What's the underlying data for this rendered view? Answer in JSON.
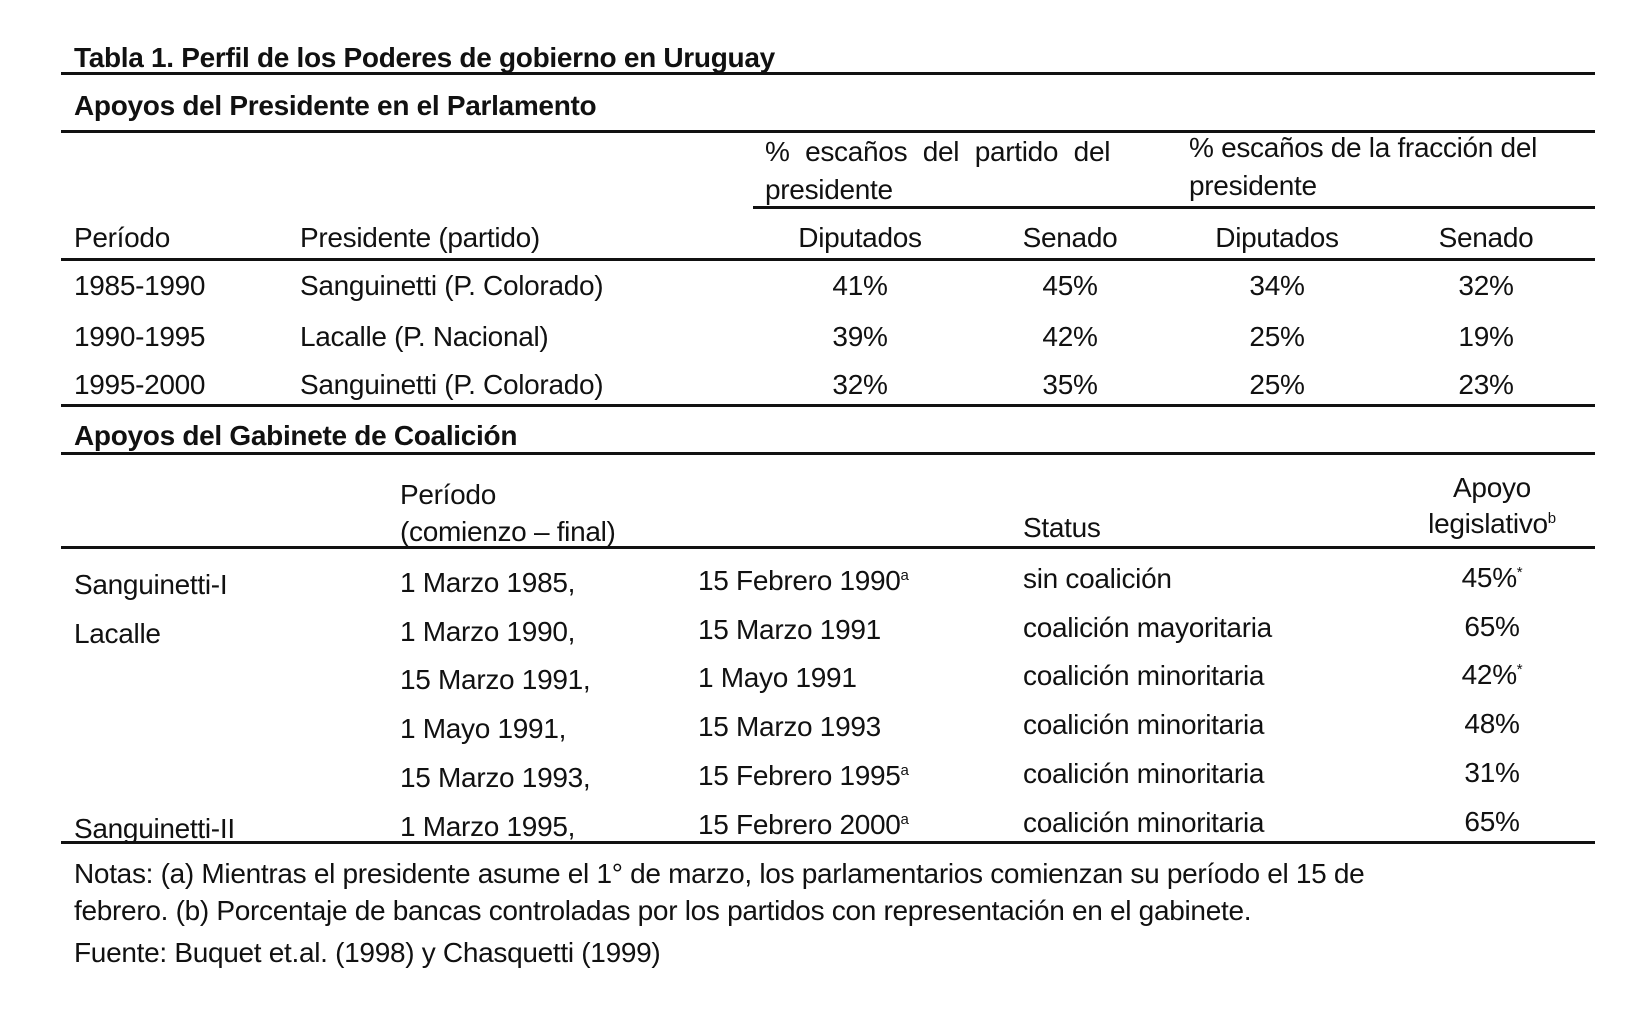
{
  "title": "Tabla 1. Perfil de los Poderes de gobierno en Uruguay",
  "section1": {
    "title": "Apoyos del Presidente en el Parlamento",
    "group1_line1": "% escaños del partido del",
    "group1_line2": "presidente",
    "group2_line1": "% escaños de la fracción del",
    "group2_line2": "presidente",
    "headers": [
      "Período",
      "Presidente (partido)",
      "Diputados",
      "Senado",
      "Diputados",
      "Senado"
    ],
    "rows": [
      [
        "1985-1990",
        "Sanguinetti (P. Colorado)",
        "41%",
        "45%",
        "34%",
        "32%"
      ],
      [
        "1990-1995",
        "Lacalle (P. Nacional)",
        "39%",
        "42%",
        "25%",
        "19%"
      ],
      [
        "1995-2000",
        "Sanguinetti (P. Colorado)",
        "32%",
        "35%",
        "25%",
        "23%"
      ]
    ]
  },
  "section2": {
    "title": "Apoyos del Gabinete de Coalición",
    "header_periodo_1": "Período",
    "header_periodo_2": "(comienzo – final)",
    "header_status": "Status",
    "header_apoyo_1": "Apoyo",
    "header_apoyo_2": "legislativo",
    "header_apoyo_sup": "b",
    "rows": [
      {
        "name": "Sanguinetti-I",
        "start": "1 Marzo 1985,",
        "end": "15 Febrero 1990",
        "end_sup": "a",
        "status": "sin coalición",
        "apoyo": "45%",
        "apoyo_sup": "*"
      },
      {
        "name": "Lacalle",
        "start": "1 Marzo 1990,",
        "end": "15 Marzo 1991",
        "end_sup": "",
        "status": "coalición mayoritaria",
        "apoyo": "65%",
        "apoyo_sup": ""
      },
      {
        "name": "",
        "start": "15 Marzo 1991,",
        "end": "1 Mayo 1991",
        "end_sup": "",
        "status": "coalición minoritaria",
        "apoyo": "42%",
        "apoyo_sup": "*"
      },
      {
        "name": "",
        "start": "1 Mayo 1991,",
        "end": "15 Marzo 1993",
        "end_sup": "",
        "status": "coalición minoritaria",
        "apoyo": "48%",
        "apoyo_sup": ""
      },
      {
        "name": "",
        "start": "15 Marzo 1993,",
        "end": "15 Febrero 1995",
        "end_sup": "a",
        "status": "coalición minoritaria",
        "apoyo": "31%",
        "apoyo_sup": ""
      },
      {
        "name": "Sanguinetti-II",
        "start": "1 Marzo 1995,",
        "end": "15 Febrero 2000",
        "end_sup": "a",
        "status": "coalición minoritaria",
        "apoyo": "65%",
        "apoyo_sup": ""
      }
    ]
  },
  "notes": {
    "line1": "Notas: (a) Mientras el presidente asume el 1° de marzo, los parlamentarios comienzan su período el 15 de",
    "line2": "febrero. (b) Porcentaje de bancas controladas por los partidos con representación en el gabinete.",
    "source": "Fuente: Buquet et.al. (1998) y Chasquetti (1999)"
  }
}
